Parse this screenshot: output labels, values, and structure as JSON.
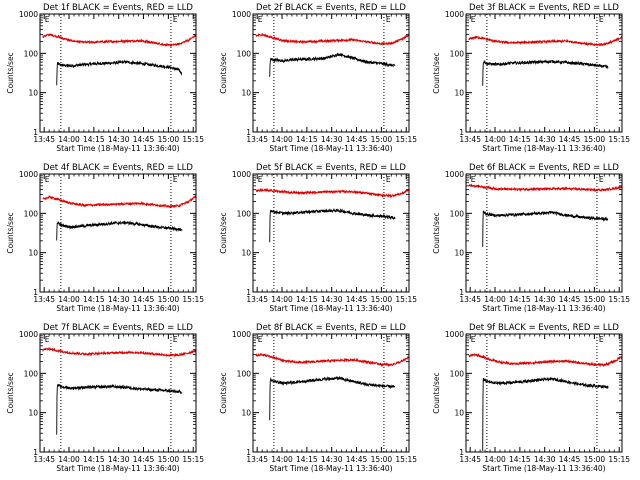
{
  "chart_data": [
    {
      "type": "line",
      "title": "Det 1f BLACK = Events, RED = LLD",
      "xlabel": "Start Time (18-May-11 13:36:40)",
      "ylabel": "Counts/sec",
      "xticks": [
        "13:45",
        "14:00",
        "14:15",
        "14:30",
        "14:45",
        "15:00",
        "15:15"
      ],
      "xlim": [
        -40,
        2200
      ],
      "ylim": [
        1,
        1000
      ],
      "ylog": true,
      "yticks": [
        "1",
        "10",
        "100",
        "1000"
      ],
      "markers": [
        {
          "label": "E",
          "x": 0
        },
        {
          "label": "E",
          "x": 1840
        }
      ],
      "vlines": [
        260,
        1840
      ],
      "series": [
        {
          "name": "Events",
          "color": "#000000",
          "x": [
            200,
            205,
            210,
            260,
            400,
            600,
            800,
            1000,
            1200,
            1400,
            1600,
            1800,
            1950,
            2000
          ],
          "y": [
            15,
            40,
            55,
            50,
            48,
            52,
            55,
            57,
            60,
            55,
            50,
            45,
            38,
            30
          ]
        },
        {
          "name": "LLD",
          "color": "#dd0000",
          "x": [
            0,
            100,
            200,
            400,
            600,
            800,
            1000,
            1200,
            1400,
            1600,
            1800,
            1950,
            2100,
            2200
          ],
          "y": [
            270,
            300,
            270,
            210,
            190,
            195,
            200,
            205,
            210,
            185,
            160,
            170,
            220,
            290
          ]
        }
      ]
    },
    {
      "type": "line",
      "title": "Det 2f BLACK = Events, RED = LLD",
      "xlabel": "Start Time (18-May-11 13:36:40)",
      "ylabel": "Counts/sec",
      "xticks": [
        "13:45",
        "14:00",
        "14:15",
        "14:30",
        "14:45",
        "15:00",
        "15:15"
      ],
      "xlim": [
        -40,
        2200
      ],
      "ylim": [
        1,
        1000
      ],
      "ylog": true,
      "yticks": [
        "1",
        "10",
        "100",
        "1000"
      ],
      "markers": [
        {
          "label": "E",
          "x": 0
        },
        {
          "label": "E",
          "x": 1840
        }
      ],
      "vlines": [
        260,
        1840
      ],
      "series": [
        {
          "name": "Events",
          "color": "#000000",
          "x": [
            200,
            205,
            210,
            260,
            400,
            600,
            800,
            1000,
            1200,
            1400,
            1600,
            1800,
            1950,
            2000
          ],
          "y": [
            25,
            55,
            70,
            68,
            65,
            70,
            72,
            75,
            95,
            75,
            60,
            55,
            50,
            48
          ]
        },
        {
          "name": "LLD",
          "color": "#dd0000",
          "x": [
            0,
            100,
            200,
            400,
            600,
            800,
            1000,
            1200,
            1400,
            1600,
            1800,
            1950,
            2100,
            2200
          ],
          "y": [
            280,
            300,
            260,
            210,
            195,
            200,
            205,
            215,
            220,
            195,
            175,
            180,
            230,
            300
          ]
        }
      ]
    },
    {
      "type": "line",
      "title": "Det 3f BLACK = Events, RED = LLD",
      "xlabel": "Start Time (18-May-11 13:36:40)",
      "ylabel": "Counts/sec",
      "xticks": [
        "13:45",
        "14:00",
        "14:15",
        "14:30",
        "14:45",
        "15:00",
        "15:15"
      ],
      "xlim": [
        -40,
        2200
      ],
      "ylim": [
        1,
        1000
      ],
      "ylog": true,
      "yticks": [
        "1",
        "10",
        "100",
        "1000"
      ],
      "markers": [
        {
          "label": "E",
          "x": 0
        },
        {
          "label": "E",
          "x": 1840
        }
      ],
      "vlines": [
        260,
        1840
      ],
      "series": [
        {
          "name": "Events",
          "color": "#000000",
          "x": [
            200,
            205,
            210,
            260,
            400,
            600,
            800,
            1000,
            1200,
            1400,
            1600,
            1800,
            1950,
            2000
          ],
          "y": [
            14,
            50,
            62,
            55,
            52,
            56,
            58,
            60,
            62,
            58,
            55,
            50,
            46,
            44
          ]
        },
        {
          "name": "LLD",
          "color": "#dd0000",
          "x": [
            0,
            100,
            200,
            400,
            600,
            800,
            1000,
            1200,
            1400,
            1600,
            1800,
            1950,
            2100,
            2200
          ],
          "y": [
            230,
            260,
            240,
            200,
            185,
            190,
            195,
            200,
            205,
            185,
            165,
            170,
            210,
            260
          ]
        }
      ]
    },
    {
      "type": "line",
      "title": "Det 4f BLACK = Events, RED = LLD",
      "xlabel": "Start Time (18-May-11 13:36:40)",
      "ylabel": "Counts/sec",
      "xticks": [
        "13:45",
        "14:00",
        "14:15",
        "14:30",
        "14:45",
        "15:00",
        "15:15"
      ],
      "xlim": [
        -40,
        2200
      ],
      "ylim": [
        1,
        1000
      ],
      "ylog": true,
      "yticks": [
        "1",
        "10",
        "100",
        "1000"
      ],
      "markers": [
        {
          "label": "E",
          "x": 0
        },
        {
          "label": "E",
          "x": 1840
        }
      ],
      "vlines": [
        260,
        1840
      ],
      "series": [
        {
          "name": "Events",
          "color": "#000000",
          "x": [
            200,
            205,
            210,
            260,
            400,
            600,
            800,
            1000,
            1200,
            1400,
            1600,
            1800,
            1950,
            2000
          ],
          "y": [
            20,
            52,
            60,
            50,
            45,
            48,
            52,
            56,
            58,
            52,
            46,
            42,
            40,
            36
          ]
        },
        {
          "name": "LLD",
          "color": "#dd0000",
          "x": [
            0,
            100,
            200,
            400,
            600,
            800,
            1000,
            1200,
            1400,
            1600,
            1800,
            1950,
            2100,
            2200
          ],
          "y": [
            230,
            260,
            230,
            180,
            160,
            165,
            170,
            175,
            180,
            165,
            150,
            155,
            200,
            270
          ]
        }
      ]
    },
    {
      "type": "line",
      "title": "Det 5f BLACK = Events, RED = LLD",
      "xlabel": "Start Time (18-May-11 13:36:40)",
      "ylabel": "Counts/sec",
      "xticks": [
        "13:45",
        "14:00",
        "14:15",
        "14:30",
        "14:45",
        "15:00",
        "15:15"
      ],
      "xlim": [
        -40,
        2200
      ],
      "ylim": [
        1,
        1000
      ],
      "ylog": true,
      "yticks": [
        "1",
        "10",
        "100",
        "1000"
      ],
      "markers": [
        {
          "label": "E",
          "x": 0
        },
        {
          "label": "E",
          "x": 1840
        }
      ],
      "vlines": [
        260,
        1840
      ],
      "series": [
        {
          "name": "Events",
          "color": "#000000",
          "x": [
            200,
            205,
            210,
            260,
            400,
            600,
            800,
            1000,
            1200,
            1400,
            1600,
            1800,
            1950,
            2000
          ],
          "y": [
            18,
            100,
            120,
            110,
            100,
            105,
            110,
            115,
            118,
            100,
            90,
            85,
            80,
            75
          ]
        },
        {
          "name": "LLD",
          "color": "#dd0000",
          "x": [
            0,
            100,
            200,
            400,
            600,
            800,
            1000,
            1200,
            1400,
            1600,
            1800,
            1950,
            2100,
            2200
          ],
          "y": [
            380,
            390,
            380,
            350,
            330,
            340,
            350,
            360,
            355,
            320,
            290,
            280,
            320,
            400
          ]
        }
      ]
    },
    {
      "type": "line",
      "title": "Det 6f BLACK = Events, RED = LLD",
      "xlabel": "Start Time (18-May-11 13:36:40)",
      "ylabel": "Counts/sec",
      "xticks": [
        "13:45",
        "14:00",
        "14:15",
        "14:30",
        "14:45",
        "15:00",
        "15:15"
      ],
      "xlim": [
        -40,
        2200
      ],
      "ylim": [
        1,
        1000
      ],
      "ylog": true,
      "yticks": [
        "1",
        "10",
        "100",
        "1000"
      ],
      "markers": [
        {
          "label": "E",
          "x": 0
        },
        {
          "label": "E",
          "x": 1840
        }
      ],
      "vlines": [
        260,
        1840
      ],
      "series": [
        {
          "name": "Events",
          "color": "#000000",
          "x": [
            200,
            205,
            210,
            260,
            400,
            600,
            800,
            1000,
            1200,
            1400,
            1600,
            1800,
            1950,
            2000
          ],
          "y": [
            14,
            95,
            110,
            95,
            88,
            92,
            95,
            100,
            105,
            90,
            80,
            75,
            72,
            70
          ]
        },
        {
          "name": "LLD",
          "color": "#dd0000",
          "x": [
            0,
            100,
            200,
            400,
            600,
            800,
            1000,
            1200,
            1400,
            1600,
            1800,
            1950,
            2100,
            2200
          ],
          "y": [
            520,
            500,
            470,
            420,
            410,
            410,
            415,
            420,
            425,
            410,
            395,
            395,
            430,
            470
          ]
        }
      ]
    },
    {
      "type": "line",
      "title": "Det 7f BLACK = Events, RED = LLD",
      "xlabel": "Start Time (18-May-11 13:36:40)",
      "ylabel": "Counts/sec",
      "xticks": [
        "13:45",
        "14:00",
        "14:15",
        "14:30",
        "14:45",
        "15:00",
        "15:15"
      ],
      "xlim": [
        -40,
        2200
      ],
      "ylim": [
        1,
        1000
      ],
      "ylog": true,
      "yticks": [
        "1",
        "10",
        "100",
        "1000"
      ],
      "markers": [
        {
          "label": "E",
          "x": 0
        },
        {
          "label": "E",
          "x": 1840
        }
      ],
      "vlines": [
        260,
        1840
      ],
      "series": [
        {
          "name": "Events",
          "color": "#000000",
          "x": [
            200,
            205,
            210,
            260,
            400,
            600,
            800,
            1000,
            1200,
            1400,
            1600,
            1800,
            1950,
            2000
          ],
          "y": [
            3,
            40,
            50,
            46,
            42,
            44,
            45,
            46,
            44,
            40,
            38,
            36,
            34,
            33
          ]
        },
        {
          "name": "LLD",
          "color": "#dd0000",
          "x": [
            0,
            100,
            200,
            400,
            600,
            800,
            1000,
            1200,
            1400,
            1600,
            1800,
            1950,
            2100,
            2200
          ],
          "y": [
            400,
            420,
            380,
            330,
            310,
            320,
            330,
            340,
            335,
            310,
            290,
            290,
            330,
            380
          ]
        }
      ]
    },
    {
      "type": "line",
      "title": "Det 8f BLACK = Events, RED = LLD",
      "xlabel": "Start Time (18-May-11 13:36:40)",
      "ylabel": "Counts/sec",
      "xticks": [
        "13:45",
        "14:00",
        "14:15",
        "14:30",
        "14:45",
        "15:00",
        "15:15"
      ],
      "xlim": [
        -40,
        2200
      ],
      "ylim": [
        1,
        1000
      ],
      "ylog": true,
      "yticks": [
        "1",
        "10",
        "100",
        "1000"
      ],
      "markers": [
        {
          "label": "E",
          "x": 0
        },
        {
          "label": "E",
          "x": 1840
        }
      ],
      "vlines": [
        260,
        1840
      ],
      "series": [
        {
          "name": "Events",
          "color": "#000000",
          "x": [
            200,
            205,
            210,
            260,
            400,
            600,
            800,
            1000,
            1200,
            1400,
            1600,
            1800,
            1950,
            2000
          ],
          "y": [
            6,
            60,
            70,
            62,
            56,
            60,
            66,
            72,
            75,
            62,
            52,
            48,
            46,
            45
          ]
        },
        {
          "name": "LLD",
          "color": "#dd0000",
          "x": [
            0,
            100,
            200,
            400,
            600,
            800,
            1000,
            1200,
            1400,
            1600,
            1800,
            1950,
            2100,
            2200
          ],
          "y": [
            280,
            300,
            270,
            210,
            190,
            195,
            205,
            215,
            220,
            195,
            170,
            165,
            200,
            260
          ]
        }
      ]
    },
    {
      "type": "line",
      "title": "Det 9f BLACK = Events, RED = LLD",
      "xlabel": "Start Time (18-May-11 13:36:40)",
      "ylabel": "Counts/sec",
      "xticks": [
        "13:45",
        "14:00",
        "14:15",
        "14:30",
        "14:45",
        "15:00",
        "15:15"
      ],
      "xlim": [
        -40,
        2200
      ],
      "ylim": [
        1,
        1000
      ],
      "ylog": true,
      "yticks": [
        "1",
        "10",
        "100",
        "1000"
      ],
      "markers": [
        {
          "label": "E",
          "x": 0
        },
        {
          "label": "E",
          "x": 1840
        }
      ],
      "vlines": [
        260,
        1840
      ],
      "series": [
        {
          "name": "Events",
          "color": "#000000",
          "x": [
            200,
            205,
            210,
            260,
            400,
            600,
            800,
            1000,
            1200,
            1400,
            1600,
            1800,
            1950,
            2000
          ],
          "y": [
            1,
            60,
            72,
            62,
            56,
            58,
            62,
            68,
            72,
            62,
            52,
            48,
            46,
            45
          ]
        },
        {
          "name": "LLD",
          "color": "#dd0000",
          "x": [
            0,
            100,
            200,
            400,
            600,
            800,
            1000,
            1200,
            1400,
            1600,
            1800,
            1950,
            2100,
            2200
          ],
          "y": [
            280,
            300,
            260,
            200,
            175,
            180,
            190,
            200,
            205,
            185,
            165,
            165,
            205,
            270
          ]
        }
      ]
    }
  ]
}
